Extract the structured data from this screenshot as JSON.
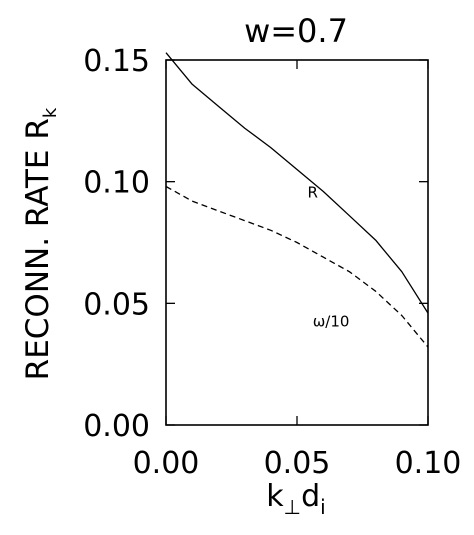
{
  "chart_data": {
    "type": "line",
    "title": "w=0.7",
    "xlabel": "k⊥di",
    "ylabel": "RECONN. RATE Rk",
    "xlim": [
      0.0,
      0.1
    ],
    "ylim": [
      0.0,
      0.15
    ],
    "xticks": [
      0.0,
      0.05,
      0.1
    ],
    "yticks": [
      0.0,
      0.05,
      0.1,
      0.15
    ],
    "xtick_labels": [
      "0.00",
      "0.05",
      "0.10"
    ],
    "ytick_labels": [
      "0.00",
      "0.05",
      "0.10",
      "0.15"
    ],
    "grid": false,
    "legend": "none",
    "series": [
      {
        "name": "R",
        "style": "solid",
        "color": "#000000",
        "x": [
          0.0,
          0.01,
          0.02,
          0.03,
          0.04,
          0.05,
          0.06,
          0.07,
          0.08,
          0.09,
          0.1
        ],
        "y": [
          0.153,
          0.14,
          0.131,
          0.122,
          0.114,
          0.105,
          0.096,
          0.086,
          0.076,
          0.063,
          0.046
        ]
      },
      {
        "name": "ω/10",
        "style": "dashed",
        "color": "#000000",
        "x": [
          0.0,
          0.01,
          0.02,
          0.03,
          0.04,
          0.05,
          0.06,
          0.07,
          0.08,
          0.09,
          0.1
        ],
        "y": [
          0.098,
          0.092,
          0.088,
          0.084,
          0.08,
          0.075,
          0.069,
          0.063,
          0.055,
          0.045,
          0.032
        ]
      }
    ],
    "annotations": [
      {
        "text": "R",
        "x": 0.054,
        "y": 0.0935
      },
      {
        "text": "ω/10",
        "x": 0.056,
        "y": 0.0405
      }
    ]
  }
}
